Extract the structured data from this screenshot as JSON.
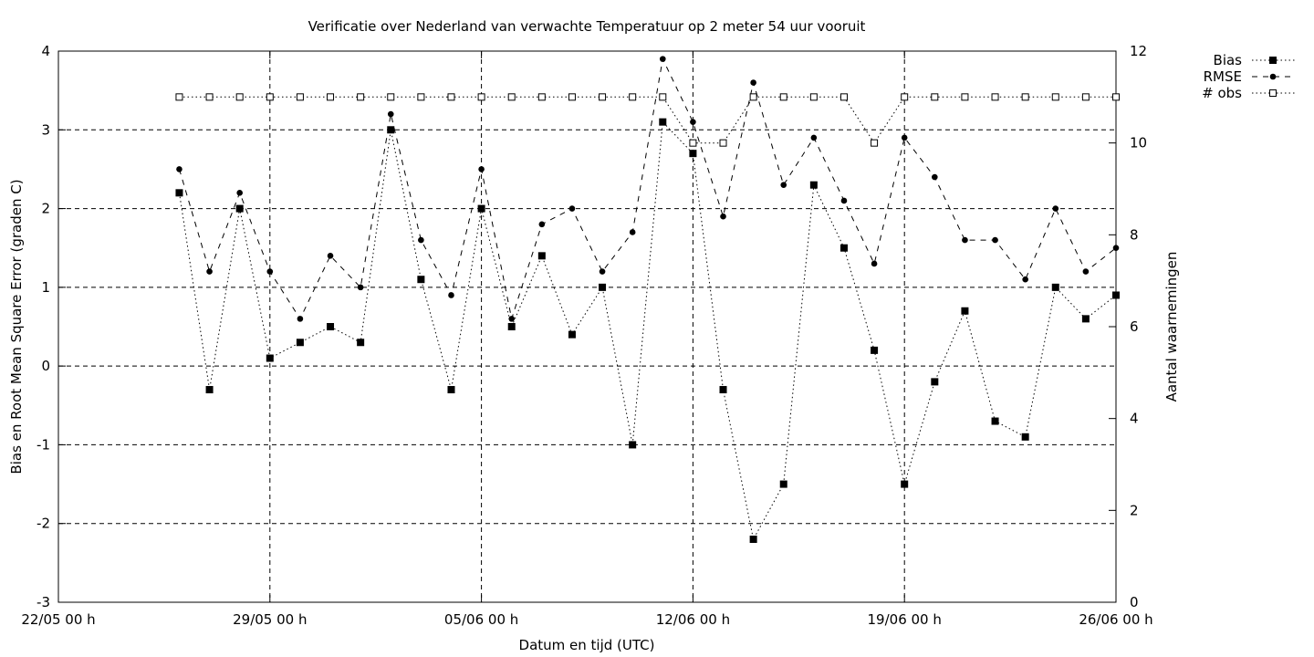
{
  "chart_data": {
    "type": "line",
    "title": "Verificatie over Nederland van verwachte Temperatuur op 2 meter 54 uur vooruit",
    "xlabel": "Datum en tijd (UTC)",
    "ylabel": "Bias en Root Mean Square Error (graden C)",
    "y2label": "Aantal waarnemingen",
    "xlim": [
      0,
      35
    ],
    "ylim": [
      -3,
      4
    ],
    "y2lim": [
      0,
      12
    ],
    "grid": true,
    "legend_position": "outside top-right",
    "x_ticks": [
      {
        "x": 0,
        "label": "22/05 00 h"
      },
      {
        "x": 7,
        "label": "29/05 00 h"
      },
      {
        "x": 14,
        "label": "05/06 00 h"
      },
      {
        "x": 21,
        "label": "12/06 00 h"
      },
      {
        "x": 28,
        "label": "19/06 00 h"
      },
      {
        "x": 35,
        "label": "26/06 00 h"
      }
    ],
    "y_ticks": [
      "-3",
      "-2",
      "-1",
      "0",
      "1",
      "2",
      "3",
      "4"
    ],
    "y2_ticks": [
      "0",
      "2",
      "4",
      "6",
      "8",
      "10",
      "12"
    ],
    "x_unit": "days since 22/05 00 h",
    "x": [
      4,
      5,
      6,
      7,
      8,
      9,
      10,
      11,
      12,
      13,
      14,
      15,
      16,
      17,
      18,
      19,
      20,
      21,
      22,
      23,
      24,
      25,
      26,
      27,
      28,
      29,
      30,
      31,
      32,
      33,
      34,
      35
    ],
    "series": [
      {
        "name": "Bias",
        "axis": "y1",
        "marker": "filled-square",
        "line": "dotted",
        "values": [
          2.2,
          -0.3,
          2.0,
          0.1,
          0.3,
          0.5,
          0.3,
          3.0,
          1.1,
          -0.3,
          2.0,
          0.5,
          1.4,
          0.4,
          1.0,
          -1.0,
          3.1,
          2.7,
          -0.3,
          -2.2,
          -1.5,
          2.3,
          1.5,
          0.2,
          -1.5,
          -0.2,
          0.7,
          -0.7,
          -0.9,
          1.0,
          0.6,
          0.9
        ]
      },
      {
        "name": "RMSE",
        "axis": "y1",
        "marker": "filled-circle",
        "line": "dashed",
        "values": [
          2.5,
          1.2,
          2.2,
          1.2,
          0.6,
          1.4,
          1.0,
          3.2,
          1.6,
          0.9,
          2.5,
          0.6,
          1.8,
          2.0,
          1.2,
          1.7,
          3.9,
          3.1,
          1.9,
          3.6,
          2.3,
          2.9,
          2.1,
          1.3,
          2.9,
          2.4,
          1.6,
          1.6,
          1.1,
          2.0,
          1.2,
          1.5
        ]
      },
      {
        "name": "# obs",
        "axis": "y2",
        "marker": "open-square",
        "line": "dotted",
        "values": [
          11,
          11,
          11,
          11,
          11,
          11,
          11,
          11,
          11,
          11,
          11,
          11,
          11,
          11,
          11,
          11,
          11,
          10,
          10,
          11,
          11,
          11,
          11,
          10,
          11,
          11,
          11,
          11,
          11,
          11,
          11,
          11
        ]
      }
    ]
  }
}
